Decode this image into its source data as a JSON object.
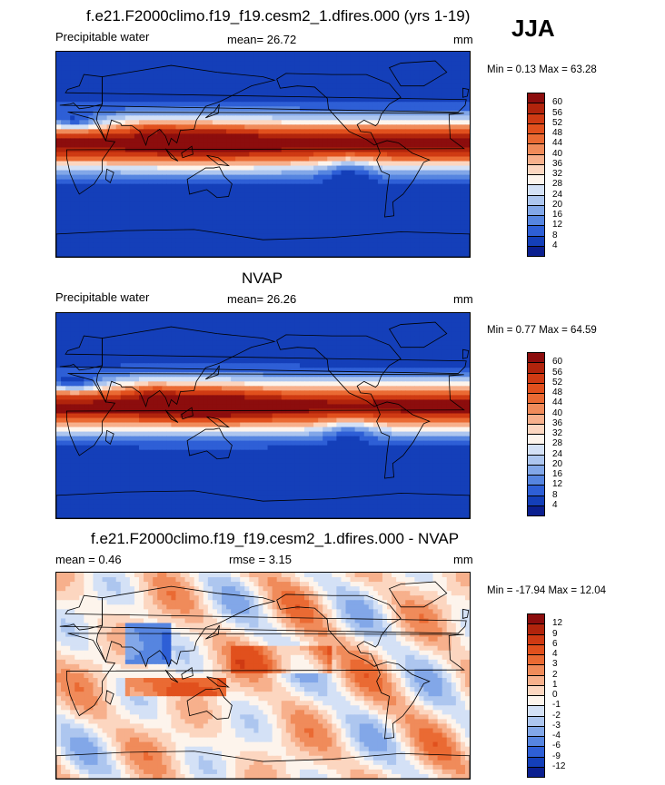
{
  "season": "JJA",
  "panels": [
    {
      "title": "f.e21.F2000climo.f19_f19.cesm2_1.dfires.000 (yrs 1-19)",
      "left_label": "Precipitable water",
      "center_label": "mean=  26.72",
      "units": "mm",
      "minmax": "Min =   0.13 Max =  63.28",
      "type": "model",
      "colorbar": {
        "labels": [
          "60",
          "56",
          "52",
          "48",
          "44",
          "40",
          "36",
          "32",
          "28",
          "24",
          "20",
          "16",
          "12",
          "8",
          "4"
        ],
        "colors": [
          "#8c0d0d",
          "#b1240c",
          "#cf3a13",
          "#e1501d",
          "#ea6a33",
          "#f08b5a",
          "#f7b08c",
          "#fcd6c0",
          "#fdf4ec",
          "#d4e1f6",
          "#adc6ef",
          "#82a7e8",
          "#5685e0",
          "#2e5fd6",
          "#143fb9",
          "#0b1f8f"
        ]
      }
    },
    {
      "title": "NVAP",
      "left_label": "Precipitable water",
      "center_label": "mean=  26.26",
      "units": "mm",
      "minmax": "Min =   0.77 Max =  64.59",
      "type": "obs",
      "colorbar": {
        "labels": [
          "60",
          "56",
          "52",
          "48",
          "44",
          "40",
          "36",
          "32",
          "28",
          "24",
          "20",
          "16",
          "12",
          "8",
          "4"
        ],
        "colors": [
          "#8c0d0d",
          "#b1240c",
          "#cf3a13",
          "#e1501d",
          "#ea6a33",
          "#f08b5a",
          "#f7b08c",
          "#fcd6c0",
          "#fdf4ec",
          "#d4e1f6",
          "#adc6ef",
          "#82a7e8",
          "#5685e0",
          "#2e5fd6",
          "#143fb9",
          "#0b1f8f"
        ]
      }
    },
    {
      "title": "f.e21.F2000climo.f19_f19.cesm2_1.dfires.000 - NVAP",
      "left_label": "mean =   0.46",
      "center_label": "rmse =   3.15",
      "units": "mm",
      "minmax": "Min = -17.94 Max =  12.04",
      "type": "diff",
      "colorbar": {
        "labels": [
          "12",
          "9",
          "6",
          "4",
          "3",
          "2",
          "1",
          "0",
          "-1",
          "-2",
          "-3",
          "-4",
          "-6",
          "-9",
          "-12"
        ],
        "colors": [
          "#8c0d0d",
          "#b1240c",
          "#cf3a13",
          "#e1501d",
          "#ea6a33",
          "#f08b5a",
          "#f7b08c",
          "#fcd6c0",
          "#fdf4ec",
          "#d4e1f6",
          "#adc6ef",
          "#82a7e8",
          "#5685e0",
          "#2e5fd6",
          "#143fb9",
          "#0b1f8f"
        ]
      }
    }
  ],
  "chart_data": [
    {
      "type": "heatmap",
      "title": "f.e21.F2000climo.f19_f19.cesm2_1.dfires.000 (yrs 1-19)",
      "variable": "Precipitable water",
      "units": "mm",
      "mean": 26.72,
      "min": 0.13,
      "max": 63.28,
      "contour_levels": [
        4,
        8,
        12,
        16,
        20,
        24,
        28,
        32,
        36,
        40,
        44,
        48,
        52,
        56,
        60
      ]
    },
    {
      "type": "heatmap",
      "title": "NVAP",
      "variable": "Precipitable water",
      "units": "mm",
      "mean": 26.26,
      "min": 0.77,
      "max": 64.59,
      "contour_levels": [
        4,
        8,
        12,
        16,
        20,
        24,
        28,
        32,
        36,
        40,
        44,
        48,
        52,
        56,
        60
      ]
    },
    {
      "type": "heatmap",
      "title": "f.e21.F2000climo.f19_f19.cesm2_1.dfires.000 - NVAP",
      "units": "mm",
      "mean": 0.46,
      "rmse": 3.15,
      "min": -17.94,
      "max": 12.04,
      "contour_levels": [
        -12,
        -9,
        -6,
        -4,
        -3,
        -2,
        -1,
        0,
        1,
        2,
        3,
        4,
        6,
        9,
        12
      ]
    }
  ]
}
